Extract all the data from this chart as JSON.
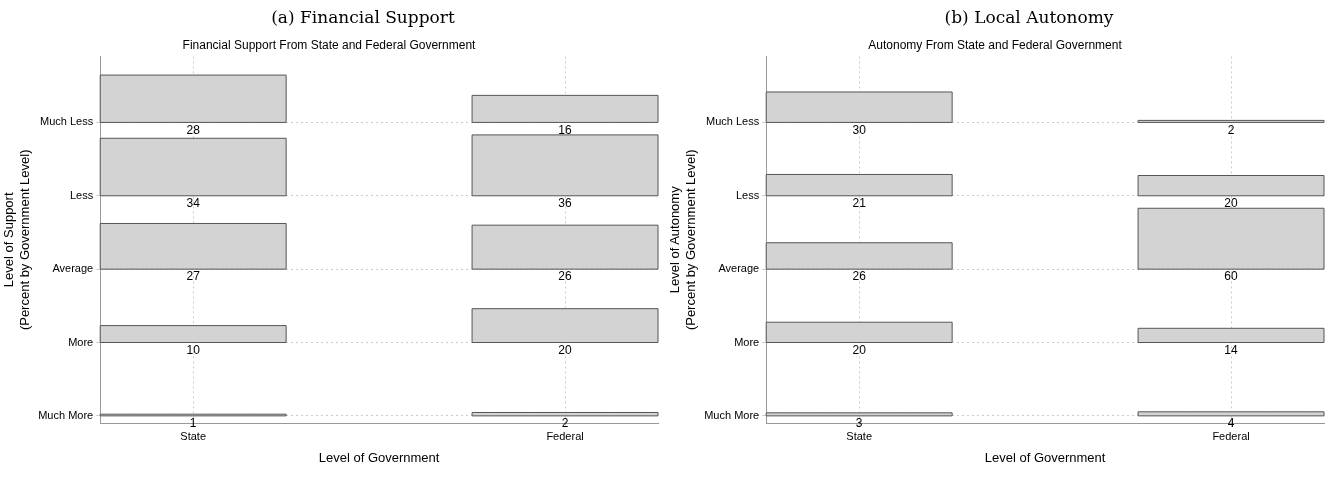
{
  "chart_data": [
    {
      "type": "heatmap",
      "annotations": [
        "(a) Financial Support"
      ],
      "title": "Financial Support From State and Federal Government",
      "xlabel": "Level of Government",
      "ylabel": "Level of Support\n(Percent by Government Level)",
      "categories": [
        "State",
        "Federal"
      ],
      "y_categories": [
        "Much Less",
        "Less",
        "Average",
        "More",
        "Much More"
      ],
      "cells": [
        [
          28,
          16
        ],
        [
          34,
          36
        ],
        [
          27,
          26
        ],
        [
          10,
          20
        ],
        [
          1,
          2
        ]
      ],
      "data_labels": true,
      "color": "#d3d3d3",
      "grid": true
    },
    {
      "type": "heatmap",
      "annotations": [
        "(b) Local Autonomy"
      ],
      "title": "Autonomy From State and Federal Government",
      "xlabel": "Level of Government",
      "ylabel": "Level of Autonomy\n(Percent by Government Level)",
      "categories": [
        "State",
        "Federal"
      ],
      "y_categories": [
        "Much Less",
        "Less",
        "Average",
        "More",
        "Much More"
      ],
      "cells": [
        [
          30,
          2
        ],
        [
          21,
          20
        ],
        [
          26,
          60
        ],
        [
          20,
          14
        ],
        [
          3,
          4
        ]
      ],
      "data_labels": true,
      "color": "#d3d3d3",
      "grid": true
    }
  ]
}
